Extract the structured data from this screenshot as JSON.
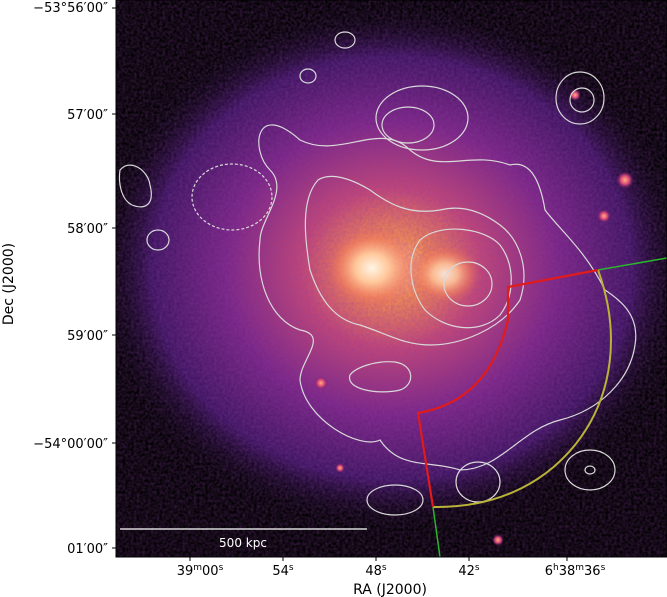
{
  "figure": {
    "xlabel": "RA (J2000)",
    "ylabel": "Dec (J2000)",
    "x_tick_labels": [
      {
        "main": "39",
        "sup1": "m",
        "mid": "00",
        "sup2": "s",
        "tail": ""
      },
      {
        "main": "54",
        "sup1": "s",
        "mid": "",
        "sup2": "",
        "tail": ""
      },
      {
        "main": "48",
        "sup1": "s",
        "mid": "",
        "sup2": "",
        "tail": ""
      },
      {
        "main": "42",
        "sup1": "s",
        "mid": "",
        "sup2": "",
        "tail": ""
      },
      {
        "main": "6",
        "sup1": "h",
        "mid": "38",
        "sup2": "m",
        "tail": "36",
        "sup3": "s"
      }
    ],
    "y_tick_labels": [
      "−53°56′00″",
      "57′00″",
      "58′00″",
      "59′00″",
      "−54°00′00″",
      "01′00″"
    ],
    "scale_bar_label": "500 kpc"
  },
  "colors": {
    "background": "#000000",
    "cluster_core": "#ffe6c8",
    "cluster_halo": "#6a1f78",
    "contour": "#d9d9d9",
    "red_sector": "#e11b1b",
    "yellow_arc": "#b9b33a",
    "green_line": "#2bb52b"
  }
}
